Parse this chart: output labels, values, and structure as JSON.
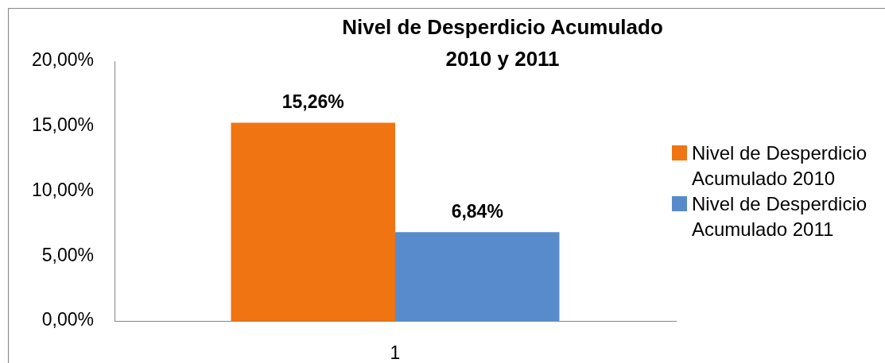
{
  "chart_data": {
    "type": "bar",
    "title": "Nivel de Desperdicio Acumulado 2010 y 2011",
    "categories": [
      "1"
    ],
    "series": [
      {
        "name": "Nivel de Desperdicio Acumulado 2010",
        "color": "#f07412",
        "values": [
          15.26
        ],
        "value_labels": [
          "15,26%"
        ]
      },
      {
        "name": "Nivel de Desperdicio Acumulado 2011",
        "color": "#588bcb",
        "values": [
          6.84
        ],
        "value_labels": [
          "6,84%"
        ]
      }
    ],
    "ylim": [
      0,
      20
    ],
    "yticks": [
      {
        "value": 0,
        "label": "0,00%"
      },
      {
        "value": 5,
        "label": "5,00%"
      },
      {
        "value": 10,
        "label": "10,00%"
      },
      {
        "value": 15,
        "label": "15,00%"
      },
      {
        "value": 20,
        "label": "20,00%"
      }
    ],
    "legend": "right"
  }
}
